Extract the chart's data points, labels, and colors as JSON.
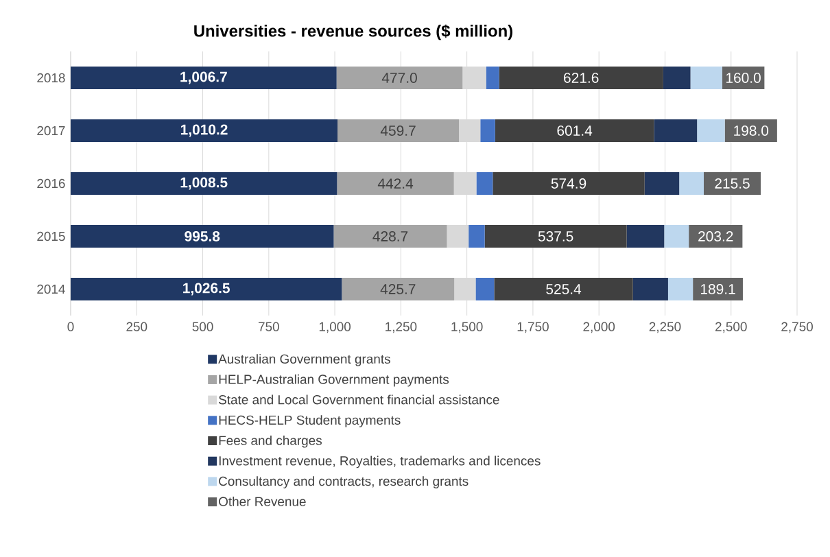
{
  "chart_data": {
    "type": "bar",
    "orientation": "horizontal",
    "stacked": true,
    "title": "Universities - revenue sources ($ million)",
    "categories": [
      "2018",
      "2017",
      "2016",
      "2015",
      "2014"
    ],
    "series": [
      {
        "name": "Australian Government grants",
        "color": "#203864",
        "values": [
          1006.7,
          1010.2,
          1008.5,
          995.8,
          1026.5
        ],
        "value_labels": [
          "1,006.7",
          "1,010.2",
          "1,008.5",
          "995.8",
          "1,026.5"
        ]
      },
      {
        "name": "HELP-Australian Government payments",
        "color": "#a5a5a5",
        "values": [
          477.0,
          459.7,
          442.4,
          428.7,
          425.7
        ],
        "value_labels": [
          "477.0",
          "459.7",
          "442.4",
          "428.7",
          "425.7"
        ]
      },
      {
        "name": "State and Local Government financial assistance",
        "color": "#d9d9d9",
        "values": [
          89,
          81,
          85,
          82,
          81
        ]
      },
      {
        "name": "HECS-HELP Student payments",
        "color": "#4472c4",
        "values": [
          49,
          56,
          62,
          61,
          70
        ]
      },
      {
        "name": "Fees and charges",
        "color": "#404040",
        "values": [
          621.6,
          601.4,
          574.9,
          537.5,
          525.4
        ],
        "value_labels": [
          "621.6",
          "601.4",
          "574.9",
          "537.5",
          "525.4"
        ]
      },
      {
        "name": "Investment revenue, Royalties, trademarks and licences",
        "color": "#22375f",
        "values": [
          103,
          163,
          131,
          142,
          133
        ]
      },
      {
        "name": "Consultancy and contracts, research grants",
        "color": "#bdd7ee",
        "values": [
          120,
          105,
          93,
          93,
          94
        ]
      },
      {
        "name": "Other Revenue",
        "color": "#636363",
        "values": [
          160.0,
          198.0,
          215.5,
          203.2,
          189.1
        ],
        "value_labels": [
          "160.0",
          "198.0",
          "215.5",
          "203.2",
          "189.1"
        ]
      }
    ],
    "xlim": [
      0,
      2750
    ],
    "xticks": [
      0,
      250,
      500,
      750,
      {
        "value": 1000,
        "label": "1,000"
      },
      {
        "value": 1250,
        "label": "1,250"
      },
      {
        "value": 1500,
        "label": "1,500"
      },
      {
        "value": 1750,
        "label": "1,750"
      },
      {
        "value": 2000,
        "label": "2,000"
      },
      {
        "value": 2250,
        "label": "2,250"
      },
      {
        "value": 2500,
        "label": "2,500"
      },
      {
        "value": 2750,
        "label": "2,750"
      }
    ],
    "grid": "x",
    "legend": "bottom"
  }
}
